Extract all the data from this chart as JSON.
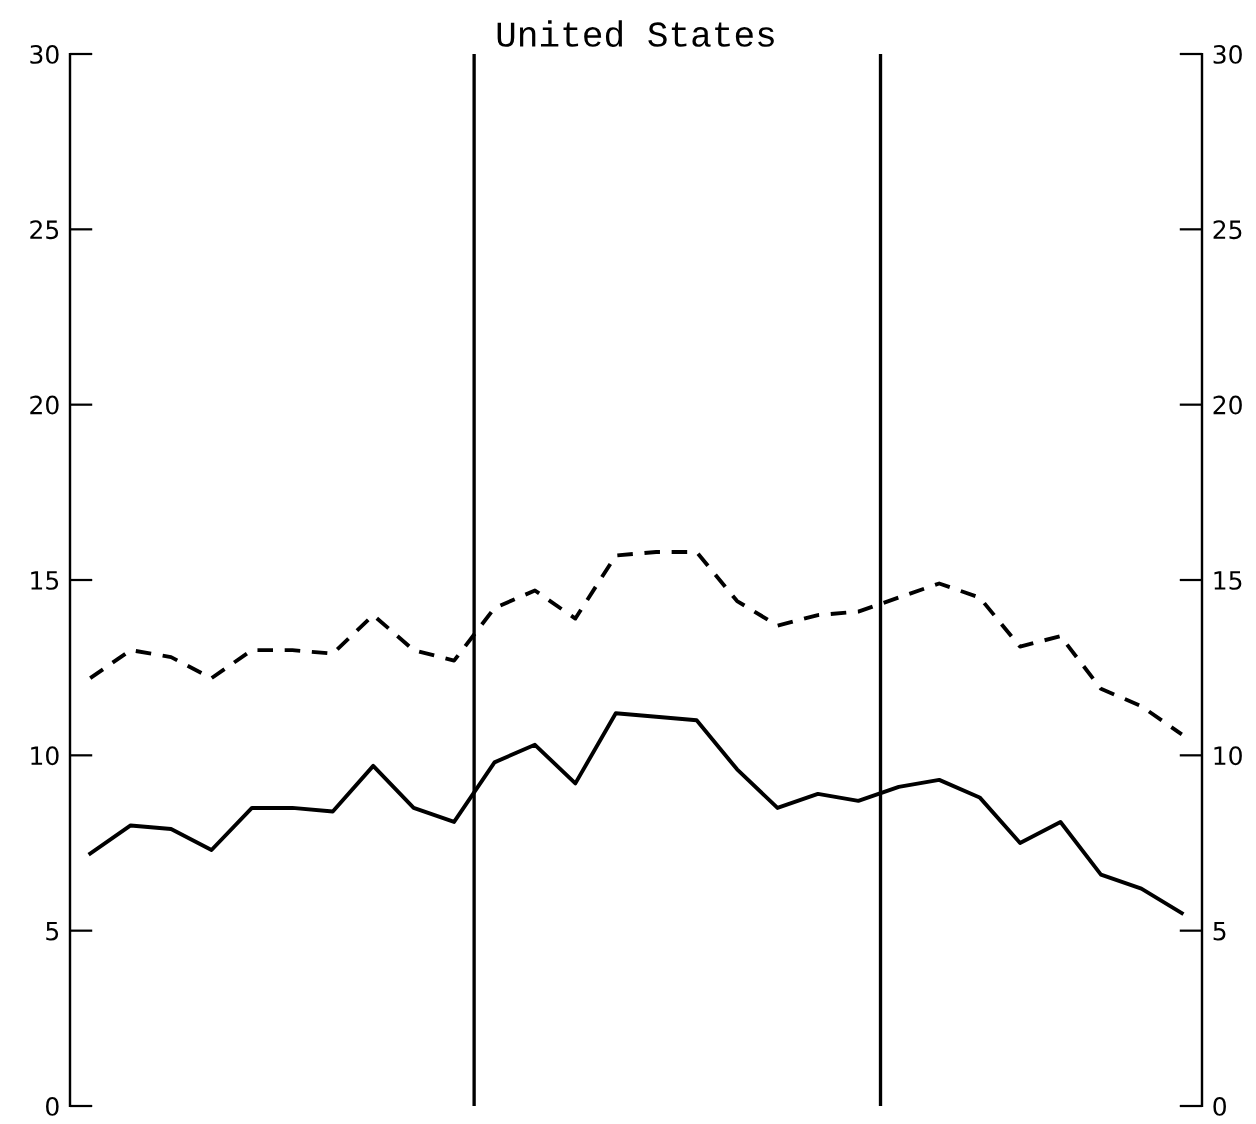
{
  "chart_data": {
    "type": "line",
    "title": "United States",
    "categories": [
      null,
      null,
      null,
      null,
      null,
      null,
      null,
      null,
      null,
      null,
      null,
      null,
      null,
      null,
      null,
      null,
      null,
      null,
      null,
      null,
      null,
      null,
      null,
      null,
      null,
      null,
      null,
      null
    ],
    "series": [
      {
        "color": "#000000",
        "line_style": "dashed",
        "values": [
          12.2,
          13.0,
          12.8,
          12.2,
          13.0,
          13.0,
          12.9,
          14.0,
          13.0,
          12.7,
          14.2,
          14.7,
          13.9,
          15.7,
          15.8,
          15.8,
          14.4,
          13.7,
          14.0,
          14.1,
          14.5,
          14.9,
          14.5,
          13.1,
          13.4,
          11.9,
          11.4,
          10.6
        ]
      },
      {
        "color": "#000000",
        "line_style": "solid",
        "values": [
          7.2,
          8.0,
          7.9,
          7.3,
          8.5,
          8.5,
          8.4,
          9.7,
          8.5,
          8.1,
          9.8,
          10.3,
          9.2,
          11.2,
          11.1,
          11.0,
          9.6,
          8.5,
          8.9,
          8.7,
          9.1,
          9.3,
          8.8,
          7.5,
          8.1,
          6.6,
          6.2,
          5.5
        ]
      }
    ],
    "ylim": [
      0,
      30
    ],
    "yticks": [
      0,
      5,
      10,
      15,
      20,
      25,
      30
    ],
    "y2lim": [
      0,
      30
    ],
    "y2ticks": [
      0,
      5,
      10,
      15,
      20,
      25,
      30
    ],
    "grid": false,
    "legend": false
  }
}
